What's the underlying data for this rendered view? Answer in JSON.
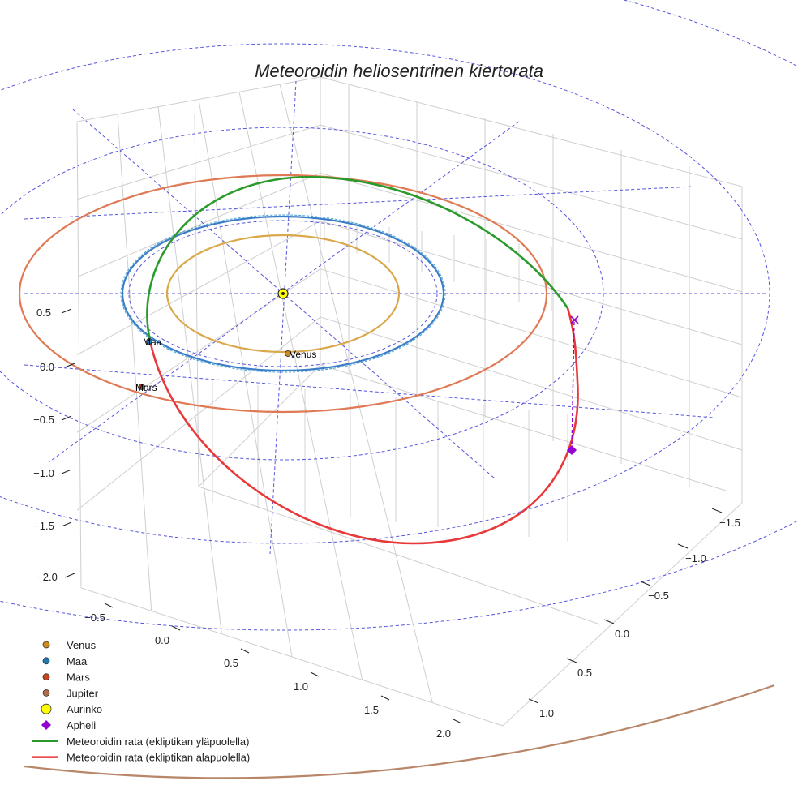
{
  "chart_data": {
    "type": "line",
    "projection": "3d",
    "title": "Meteoroidin heliosentrinen kiertorata",
    "axes": {
      "x_ticks": [
        "−0.5",
        "0.0",
        "0.5",
        "1.0",
        "1.5",
        "2.0"
      ],
      "y_ticks": [
        "−1.5",
        "−1.0",
        "−0.5",
        "0.0",
        "0.5",
        "1.0"
      ],
      "z_ticks": [
        "0.5",
        "0.0",
        "−0.5",
        "−1.0",
        "−1.5",
        "−2.0"
      ],
      "grid": true
    },
    "bodies": [
      {
        "name": "Venus",
        "label": "Venus",
        "orbit_radius_au": 0.72,
        "color": "#d08a1e"
      },
      {
        "name": "Maa",
        "label": "Maa",
        "orbit_radius_au": 1.0,
        "color": "#1f77b4"
      },
      {
        "name": "Mars",
        "label": "Mars",
        "orbit_radius_au": 1.52,
        "color": "#c8441c"
      },
      {
        "name": "Jupiter",
        "orbit_radius_au": 5.2,
        "color": "#b06b4a"
      },
      {
        "name": "Aurinko",
        "color": "#ffff00"
      }
    ],
    "aphelion": {
      "name": "Apheli",
      "color": "#9400d3"
    },
    "series": [
      {
        "name": "Meteoroidin rata (ekliptikan yläpuolella)",
        "color": "#2a9a2a"
      },
      {
        "name": "Meteoroidin rata (ekliptikan alapuolella)",
        "color": "#e8383a"
      }
    ],
    "legend_placement": "bottom-left"
  }
}
